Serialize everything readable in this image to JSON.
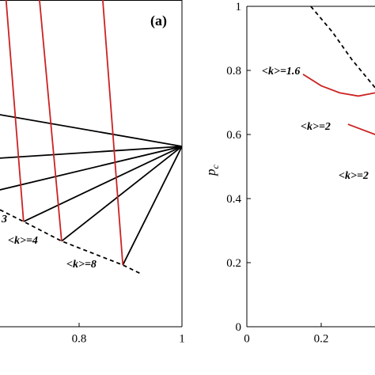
{
  "chart_data": [
    {
      "type": "line",
      "label": "(a)",
      "xlim": [
        0.6,
        1
      ],
      "ylim": [
        0,
        1
      ],
      "xticks": [
        0.8,
        1
      ],
      "series": [
        {
          "color": "#000000",
          "x": [
            1,
            0.646
          ],
          "values": [
            0.552,
            0.649
          ]
        },
        {
          "color": "#000000",
          "x": [
            1,
            0.646
          ],
          "values": [
            0.552,
            0.516
          ]
        },
        {
          "color": "#000000",
          "x": [
            1,
            0.646
          ],
          "values": [
            0.552,
            0.419
          ]
        },
        {
          "color": "#000000",
          "x": [
            1,
            0.692
          ],
          "values": [
            0.552,
            0.322
          ]
        },
        {
          "color": "#000000",
          "x": [
            1,
            0.766
          ],
          "values": [
            0.552,
            0.262
          ]
        },
        {
          "color": "#000000",
          "x": [
            1,
            0.885
          ],
          "values": [
            0.552,
            0.189
          ]
        },
        {
          "color": "#cc2222",
          "x": [
            0.658,
            0.692
          ],
          "values": [
            1,
            0.322
          ]
        },
        {
          "color": "#cc2222",
          "x": [
            0.723,
            0.766
          ],
          "values": [
            1,
            0.262
          ]
        },
        {
          "color": "#cc2222",
          "x": [
            0.846,
            0.885
          ],
          "values": [
            1,
            0.189
          ]
        },
        {
          "color": "#000000",
          "dashed": true,
          "x": [
            0.646,
            0.692,
            0.766,
            0.885,
            0.923
          ],
          "values": [
            0.358,
            0.322,
            0.262,
            0.189,
            0.16
          ]
        }
      ],
      "annotations": [
        "3",
        "<k>=4",
        "<k>=8"
      ]
    },
    {
      "type": "line",
      "ylabel": "p",
      "ylabel_sub": "c",
      "xlim": [
        0,
        1
      ],
      "ylim": [
        0,
        1
      ],
      "xticks": [
        0,
        0.2
      ],
      "yticks": [
        0,
        0.2,
        0.4,
        0.6,
        0.8,
        1
      ],
      "series": [
        {
          "color": "#000000",
          "dashed": true,
          "x": [
            0.172,
            0.23,
            0.283,
            0.345
          ],
          "values": [
            1,
            0.92,
            0.833,
            0.746
          ]
        },
        {
          "color": "#cc2222",
          "x": [
            0.151,
            0.2,
            0.25,
            0.3,
            0.345
          ],
          "values": [
            0.788,
            0.752,
            0.73,
            0.72,
            0.73
          ]
        },
        {
          "color": "#cc2222",
          "x": [
            0.272,
            0.345
          ],
          "values": [
            0.632,
            0.6
          ]
        }
      ],
      "annotations": [
        "<k>=1.6",
        "<k>=2",
        "<k>=2"
      ]
    }
  ]
}
